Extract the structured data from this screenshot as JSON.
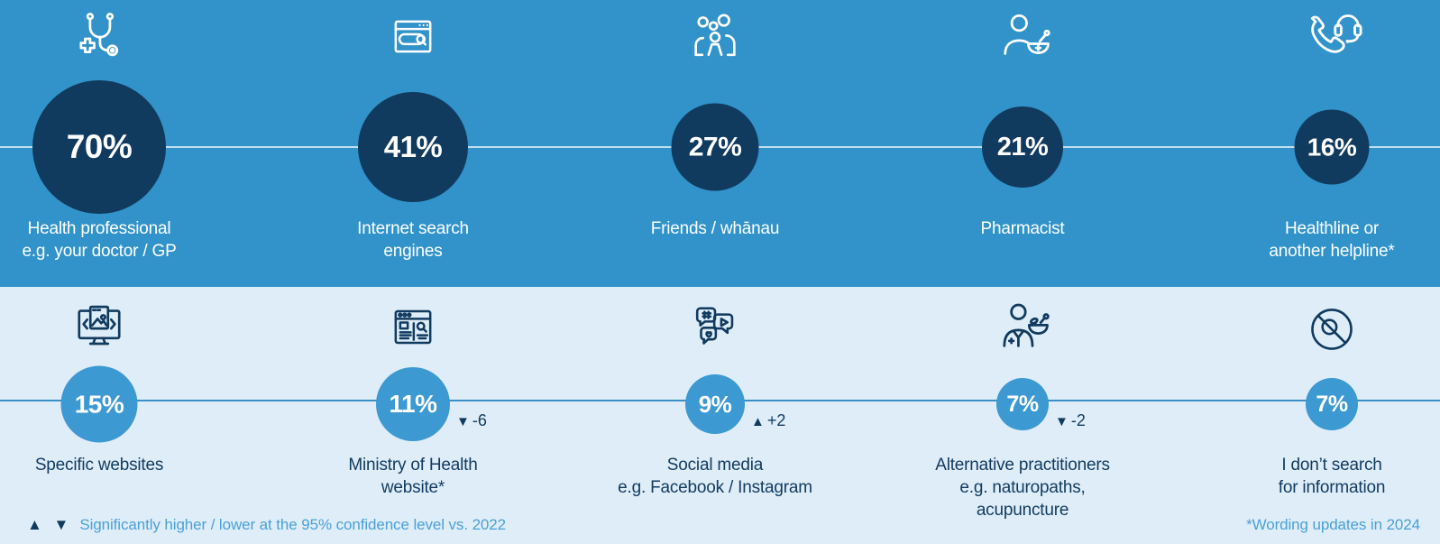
{
  "top_row": {
    "items": [
      {
        "value": "70%",
        "label_lines": [
          "Health professional",
          "e.g. your doctor / GP"
        ],
        "icon": "stethoscope-icon",
        "diameter": 148,
        "change": null
      },
      {
        "value": "41%",
        "label_lines": [
          "Internet search",
          "engines"
        ],
        "icon": "browser-search-icon",
        "diameter": 122,
        "change": null
      },
      {
        "value": "27%",
        "label_lines": [
          "Friends / whānau"
        ],
        "icon": "people-group-icon",
        "diameter": 97,
        "change": null
      },
      {
        "value": "21%",
        "label_lines": [
          "Pharmacist"
        ],
        "icon": "pharmacist-mortar-icon",
        "diameter": 90,
        "change": null
      },
      {
        "value": "16%",
        "label_lines": [
          "Healthline or",
          "another helpline*"
        ],
        "icon": "phone-headset-icon",
        "diameter": 83,
        "change": null
      }
    ]
  },
  "bottom_row": {
    "items": [
      {
        "value": "15%",
        "label_lines": [
          "Specific websites"
        ],
        "icon": "monitor-website-icon",
        "diameter": 85,
        "change": null
      },
      {
        "value": "11%",
        "label_lines": [
          "Ministry of Health",
          "website*"
        ],
        "icon": "webpage-search-icon",
        "diameter": 82,
        "change": {
          "direction": "down",
          "symbol": "▼",
          "delta": "-6"
        }
      },
      {
        "value": "9%",
        "label_lines": [
          "Social media",
          "e.g. Facebook / Instagram"
        ],
        "icon": "social-media-chat-icon",
        "diameter": 66,
        "change": {
          "direction": "up",
          "symbol": "▲",
          "delta": "+2"
        }
      },
      {
        "value": "7%",
        "label_lines": [
          "Alternative practitioners",
          "e.g. naturopaths,",
          "acupuncture"
        ],
        "icon": "alternative-practitioner-icon",
        "diameter": 58,
        "change": {
          "direction": "down",
          "symbol": "▼",
          "delta": "-2"
        }
      },
      {
        "value": "7%",
        "label_lines": [
          "I don’t search",
          "for information"
        ],
        "icon": "no-search-icon",
        "diameter": 58,
        "change": null
      }
    ]
  },
  "footer": {
    "legend_symbols": "▲ ▼",
    "legend_text": "Significantly higher / lower at the 95% confidence level vs. 2022",
    "note_text": "*Wording updates in 2024"
  },
  "colors": {
    "top_background": "#3193c9",
    "bottom_background": "#dfedf8",
    "dark_navy": "#113a5f",
    "bubble_blue": "#3c99d2",
    "connector_line_blue": "#3a8fc8",
    "footnote_blue": "#4aa0d6",
    "white": "#ffffff"
  },
  "chart_data": {
    "type": "bubble",
    "categories": [
      "Health professional e.g. your doctor / GP",
      "Internet search engines",
      "Friends / whānau",
      "Pharmacist",
      "Healthline or another helpline*",
      "Specific websites",
      "Ministry of Health website*",
      "Social media e.g. Facebook / Instagram",
      "Alternative practitioners e.g. naturopaths, acupuncture",
      "I don’t search for information"
    ],
    "values": [
      70,
      41,
      27,
      21,
      16,
      15,
      11,
      9,
      7,
      7
    ],
    "unit": "%",
    "changes_vs_2022": [
      null,
      null,
      null,
      null,
      null,
      null,
      -6,
      2,
      -2,
      null
    ],
    "layout": {
      "rows": 2,
      "items_per_row": 5,
      "bubble_size_encodes": "value",
      "grid": false,
      "legend_position": "bottom-left"
    },
    "annotations": [
      "▲ ▼ Significantly higher / lower at the 95% confidence level vs. 2022",
      "*Wording updates in 2024"
    ]
  }
}
